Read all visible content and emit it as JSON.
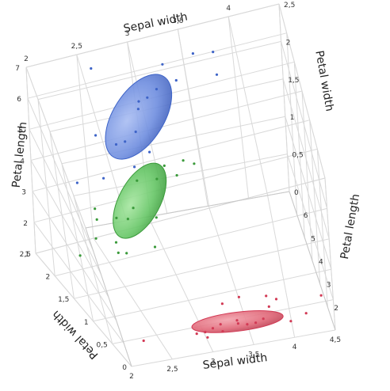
{
  "chart_data": {
    "type": "scatter",
    "subtype": "3d-scatter-with-density-ellipsoids",
    "title": "",
    "axes": {
      "x": {
        "label": "Sepal width",
        "range": [
          2,
          4.5
        ],
        "ticks": [
          "2",
          "2,5",
          "3",
          "3,5",
          "4",
          "4,5"
        ]
      },
      "y": {
        "label": "Petal width",
        "range": [
          0,
          2.5
        ],
        "ticks": [
          "0",
          "0,5",
          "1",
          "1,5",
          "2",
          "2,5"
        ]
      },
      "z": {
        "label": "Petal length",
        "range": [
          1,
          7
        ],
        "ticks": [
          "1",
          "2",
          "3",
          "4",
          "5",
          "6",
          "7"
        ]
      }
    },
    "grid": true,
    "legend": "none",
    "series": [
      {
        "group": "red",
        "color": "#d23a55",
        "ellipsoid_color": "#e8707f",
        "center": {
          "sepal_width": 3.4,
          "petal_width": 0.25,
          "petal_length": 1.46
        },
        "points": [
          [
            3.5,
            0.2,
            1.4
          ],
          [
            3.0,
            0.2,
            1.4
          ],
          [
            3.2,
            0.2,
            1.3
          ],
          [
            3.1,
            0.2,
            1.5
          ],
          [
            3.6,
            0.2,
            1.4
          ],
          [
            3.9,
            0.4,
            1.7
          ],
          [
            3.4,
            0.3,
            1.4
          ],
          [
            3.4,
            0.2,
            1.5
          ],
          [
            2.9,
            0.2,
            1.4
          ],
          [
            3.7,
            0.2,
            1.5
          ],
          [
            3.0,
            0.1,
            1.4
          ],
          [
            4.0,
            0.2,
            1.2
          ],
          [
            4.4,
            0.4,
            1.5
          ],
          [
            3.8,
            0.3,
            1.7
          ],
          [
            3.3,
            0.5,
            1.7
          ],
          [
            4.2,
            0.2,
            1.4
          ],
          [
            2.3,
            0.3,
            1.3
          ],
          [
            3.5,
            0.6,
            1.6
          ],
          [
            3.8,
            0.4,
            1.9
          ],
          [
            3.2,
            0.2,
            1.6
          ]
        ]
      },
      {
        "group": "green",
        "color": "#3a9a3a",
        "ellipsoid_color": "#66cc66",
        "center": {
          "sepal_width": 2.77,
          "petal_width": 1.33,
          "petal_length": 4.26
        },
        "points": [
          [
            3.2,
            1.4,
            4.7
          ],
          [
            3.1,
            1.5,
            4.9
          ],
          [
            2.3,
            1.3,
            4.0
          ],
          [
            2.8,
            1.5,
            4.6
          ],
          [
            3.3,
            1.6,
            4.7
          ],
          [
            2.4,
            1.0,
            3.3
          ],
          [
            2.0,
            1.0,
            3.5
          ],
          [
            2.2,
            1.0,
            4.0
          ],
          [
            2.9,
            1.3,
            3.6
          ],
          [
            2.7,
            1.4,
            3.9
          ],
          [
            3.0,
            1.5,
            4.5
          ],
          [
            2.5,
            1.1,
            3.0
          ],
          [
            2.4,
            1.0,
            3.7
          ],
          [
            3.4,
            1.6,
            4.5
          ],
          [
            2.3,
            1.3,
            4.4
          ],
          [
            2.6,
            1.2,
            4.0
          ],
          [
            2.8,
            1.1,
            3.0
          ],
          [
            2.5,
            1.3,
            3.9
          ]
        ]
      },
      {
        "group": "blue",
        "color": "#3e64c8",
        "ellipsoid_color": "#6f8fe0",
        "center": {
          "sepal_width": 2.97,
          "petal_width": 2.03,
          "petal_length": 5.55
        },
        "points": [
          [
            3.3,
            2.5,
            6.0
          ],
          [
            2.7,
            1.9,
            5.1
          ],
          [
            3.0,
            2.1,
            5.9
          ],
          [
            2.9,
            1.8,
            5.6
          ],
          [
            3.8,
            2.2,
            6.7
          ],
          [
            2.6,
            2.3,
            6.9
          ],
          [
            3.2,
            2.3,
            5.7
          ],
          [
            2.8,
            2.0,
            4.9
          ],
          [
            3.8,
            2.0,
            6.4
          ],
          [
            2.2,
            1.5,
            5.0
          ],
          [
            3.6,
            2.5,
            6.1
          ],
          [
            2.5,
            1.7,
            4.5
          ],
          [
            3.4,
            2.4,
            5.6
          ],
          [
            2.5,
            1.8,
            5.8
          ],
          [
            3.0,
            1.8,
            4.8
          ],
          [
            3.1,
            2.3,
            5.5
          ],
          [
            2.8,
            1.5,
            5.1
          ],
          [
            3.0,
            2.3,
            5.2
          ]
        ]
      }
    ]
  }
}
